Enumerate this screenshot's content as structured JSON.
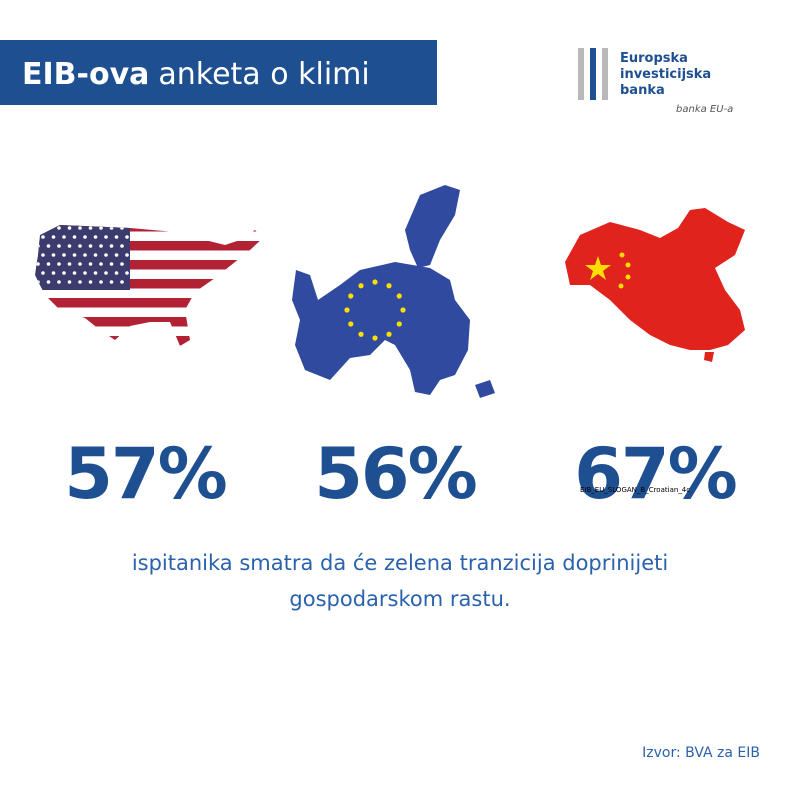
{
  "header": {
    "title_bold": "EIB-ova",
    "title_rest": "anketa o klimi"
  },
  "logo": {
    "lines": [
      "Europska",
      "investicijska",
      "banka"
    ],
    "tagline": "banka EU-a"
  },
  "stats": [
    {
      "value": "57%"
    },
    {
      "value": "56%"
    },
    {
      "value": "67%"
    }
  ],
  "overlay_label": "EIB_EU_SLOGAN_B_Croatian_4c",
  "statement": [
    "ispitanika smatra da će zelena tranzicija doprinijeti",
    "gospodarskom rastu."
  ],
  "source": "Izvor: BVA za EIB"
}
